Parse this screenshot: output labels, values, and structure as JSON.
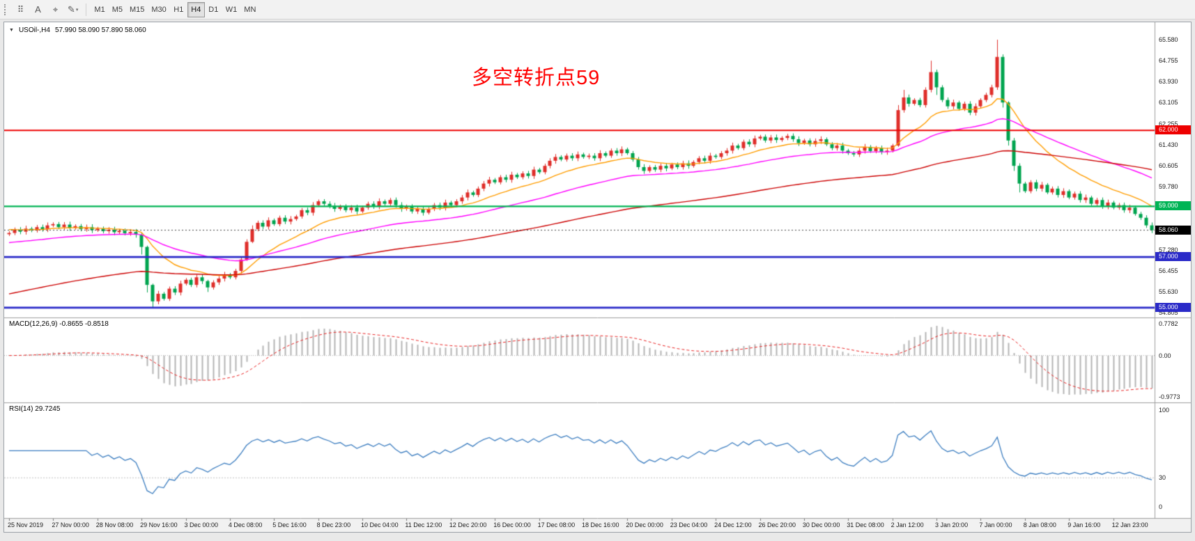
{
  "toolbar": {
    "tools": [
      {
        "name": "grid-tool",
        "glyph": "⠿"
      },
      {
        "name": "text-tool",
        "glyph": "A"
      },
      {
        "name": "crosshair-tool",
        "glyph": "⌖"
      },
      {
        "name": "draw-tool",
        "glyph": "✎",
        "caret": "▾"
      }
    ],
    "timeframes": [
      "M1",
      "M5",
      "M15",
      "M30",
      "H1",
      "H4",
      "D1",
      "W1",
      "MN"
    ],
    "active_timeframe": "H4"
  },
  "chart_data": {
    "type": "candlestick",
    "symbol_timeframe": "USOil-,H4",
    "ohlc_text": "57.990 58.090 57.890 58.060",
    "marker": "▼",
    "annotation": "多空转折点59",
    "annotation_color": "#ff0000",
    "price_axis_labels": [
      {
        "text": "65.580",
        "value": 65.58
      },
      {
        "text": "64.755",
        "value": 64.755
      },
      {
        "text": "63.930",
        "value": 63.93
      },
      {
        "text": "63.105",
        "value": 63.105
      },
      {
        "text": "62.255",
        "value": 62.255
      },
      {
        "text": "61.430",
        "value": 61.43
      },
      {
        "text": "60.605",
        "value": 60.605
      },
      {
        "text": "59.780",
        "value": 59.78
      },
      {
        "text": "57.280",
        "value": 57.28
      },
      {
        "text": "56.455",
        "value": 56.455
      },
      {
        "text": "55.630",
        "value": 55.63
      },
      {
        "text": "54.805",
        "value": 54.805
      }
    ],
    "hlines": [
      {
        "label": "62.000",
        "value": 62.0,
        "color": "#ee0000",
        "width": 1.8
      },
      {
        "label": "59.000",
        "value": 59.0,
        "color": "#00b455",
        "width": 2.2
      },
      {
        "label": "57.000",
        "value": 57.0,
        "color": "#2a2ac8",
        "width": 2.6
      },
      {
        "label": "55.000",
        "value": 55.0,
        "color": "#2a2ac8",
        "width": 2.6
      }
    ],
    "current_price": {
      "label": "58.060",
      "value": 58.06,
      "color": "#000000"
    },
    "candles": {
      "first_open": 57.9,
      "closes": [
        57.95,
        58.08,
        58.0,
        58.12,
        58.05,
        58.18,
        58.1,
        58.25,
        58.3,
        58.18,
        58.28,
        58.15,
        58.22,
        58.1,
        58.18,
        58.06,
        58.12,
        58.02,
        58.08,
        57.98,
        58.04,
        57.94,
        57.99,
        57.88,
        57.4,
        55.9,
        55.25,
        55.55,
        55.35,
        55.75,
        55.6,
        55.95,
        56.1,
        55.9,
        56.2,
        56.05,
        55.8,
        56.0,
        56.15,
        56.3,
        56.2,
        56.45,
        56.9,
        57.6,
        58.1,
        58.35,
        58.2,
        58.45,
        58.3,
        58.55,
        58.4,
        58.5,
        58.6,
        58.85,
        58.75,
        59.05,
        59.2,
        59.1,
        59.02,
        58.9,
        59.0,
        58.85,
        58.95,
        58.8,
        58.95,
        59.1,
        59.0,
        59.2,
        59.1,
        59.25,
        59.05,
        58.9,
        59.0,
        58.8,
        58.9,
        58.75,
        58.9,
        59.05,
        58.95,
        59.15,
        59.05,
        59.2,
        59.35,
        59.55,
        59.45,
        59.7,
        59.9,
        60.05,
        59.95,
        60.15,
        60.05,
        60.25,
        60.15,
        60.3,
        60.2,
        60.45,
        60.35,
        60.6,
        60.8,
        60.95,
        60.85,
        61.0,
        60.9,
        61.05,
        60.95,
        61.0,
        60.9,
        61.1,
        61.0,
        61.2,
        61.1,
        61.25,
        61.1,
        60.85,
        60.55,
        60.4,
        60.55,
        60.45,
        60.6,
        60.5,
        60.65,
        60.55,
        60.7,
        60.6,
        60.75,
        60.9,
        60.8,
        61.0,
        60.95,
        61.1,
        61.2,
        61.4,
        61.3,
        61.55,
        61.45,
        61.68,
        61.75,
        61.6,
        61.72,
        61.62,
        61.7,
        61.78,
        61.65,
        61.5,
        61.6,
        61.45,
        61.58,
        61.65,
        61.45,
        61.3,
        61.4,
        61.2,
        61.1,
        61.05,
        61.2,
        61.35,
        61.18,
        61.3,
        61.15,
        61.2,
        61.4,
        62.8,
        63.3,
        63.05,
        63.2,
        63.0,
        63.6,
        64.3,
        63.7,
        63.2,
        62.95,
        63.1,
        62.85,
        63.05,
        62.7,
        62.95,
        63.2,
        63.4,
        63.7,
        64.9,
        63.1,
        61.6,
        60.6,
        59.9,
        59.6,
        59.95,
        59.7,
        59.85,
        59.55,
        59.7,
        59.45,
        59.6,
        59.35,
        59.5,
        59.25,
        59.35,
        59.1,
        59.25,
        59.0,
        59.15,
        58.95,
        59.05,
        58.85,
        58.95,
        58.7,
        58.55,
        58.25,
        58.06
      ],
      "wick": 0.07,
      "wick_overrides": {
        "24": [
          57.95,
          57.1
        ],
        "25": [
          57.45,
          55.6
        ],
        "26": [
          55.95,
          55.02
        ],
        "36": [
          56.1,
          55.62
        ],
        "43": [
          57.7,
          56.85
        ],
        "44": [
          58.25,
          57.55
        ],
        "161": [
          63.0,
          61.35
        ],
        "162": [
          63.6,
          62.7
        ],
        "167": [
          64.75,
          63.5
        ],
        "168": [
          64.4,
          63.4
        ],
        "179": [
          65.58,
          63.6
        ],
        "180": [
          65.0,
          62.9
        ],
        "181": [
          63.15,
          61.4
        ],
        "182": [
          61.7,
          60.4
        ],
        "183": [
          60.7,
          59.55
        ]
      },
      "up_color": "#df2e2a",
      "down_color": "#00a44f"
    },
    "moving_averages": [
      {
        "name": "ma-fast",
        "color": "#ff9d00",
        "period": 16,
        "seed": 58.1
      },
      {
        "name": "ma-mid",
        "color": "#ff00ff",
        "period": 44,
        "seed": 57.55
      },
      {
        "name": "ma-slow",
        "color": "#cc0000",
        "period": 110,
        "seed": 55.5
      }
    ],
    "macd": {
      "title": "MACD(12,26,9) -0.8655 -0.8518",
      "fast": 12,
      "slow": 26,
      "signal": 9,
      "value": -0.8655,
      "signal_value": -0.8518,
      "axis_labels": {
        "top": "0.7782",
        "zero": "0.00",
        "bottom": "-0.9773"
      },
      "histogram_color": "#b4b4b4",
      "signal_color": "#e82020"
    },
    "rsi": {
      "title": "RSI(14) 29.7245",
      "period": 14,
      "value": 29.7245,
      "level": 30,
      "axis_labels": {
        "top": "100",
        "level": "30",
        "bottom": "0"
      },
      "line_color": "#3d7ec0"
    },
    "time_labels": [
      "25 Nov 2019",
      "27 Nov 00:00",
      "28 Nov 08:00",
      "29 Nov 16:00",
      "3 Dec 00:00",
      "4 Dec 08:00",
      "5 Dec 16:00",
      "8 Dec 23:00",
      "10 Dec 04:00",
      "11 Dec 12:00",
      "12 Dec 20:00",
      "16 Dec 00:00",
      "17 Dec 08:00",
      "18 Dec 16:00",
      "20 Dec 00:00",
      "23 Dec 04:00",
      "24 Dec 12:00",
      "26 Dec 20:00",
      "30 Dec 00:00",
      "31 Dec 08:00",
      "2 Jan 12:00",
      "3 Jan 20:00",
      "7 Jan 00:00",
      "8 Jan 08:00",
      "9 Jan 16:00",
      "12 Jan 23:00"
    ]
  }
}
